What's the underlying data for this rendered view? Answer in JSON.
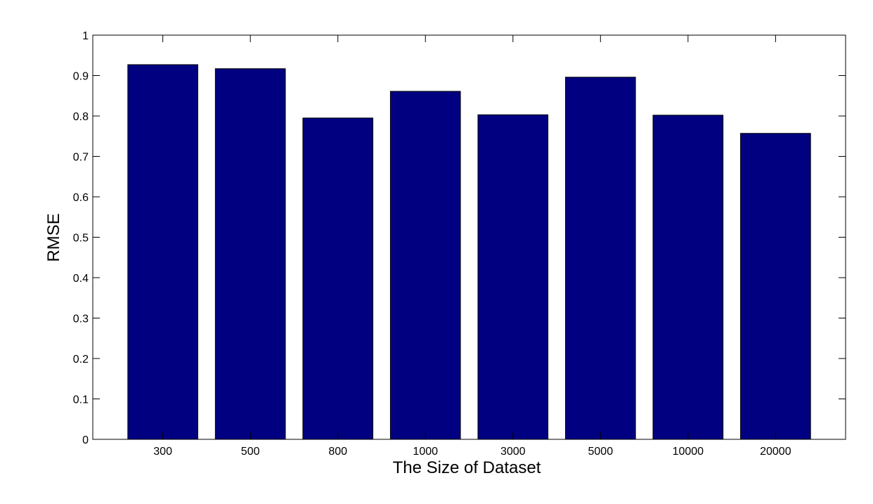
{
  "chart_data": {
    "type": "bar",
    "title": "",
    "xlabel": "The Size of Dataset",
    "ylabel": "RMSE",
    "categories": [
      "300",
      "500",
      "800",
      "1000",
      "3000",
      "5000",
      "10000",
      "20000"
    ],
    "values": [
      0.927,
      0.917,
      0.795,
      0.861,
      0.803,
      0.896,
      0.802,
      0.757
    ],
    "ylim": [
      0,
      1
    ],
    "yticks": [
      "0",
      "0.1",
      "0.2",
      "0.3",
      "0.4",
      "0.5",
      "0.6",
      "0.7",
      "0.8",
      "0.9",
      "1"
    ],
    "grid": false,
    "legend": "none",
    "colors": {
      "bar_fill": "#000080",
      "bar_stroke": "#000000",
      "axis": "#000000",
      "background": "#ffffff"
    }
  }
}
